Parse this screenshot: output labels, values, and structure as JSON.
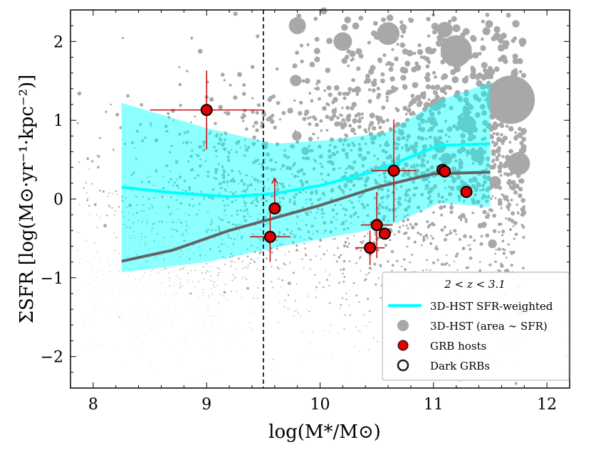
{
  "chart_data": {
    "type": "scatter",
    "xlabel": "log(M*/M⊙)",
    "ylabel": "ΣSFR [log(M⊙·yr⁻¹·kpc⁻²)]",
    "xlim": [
      7.8,
      12.2
    ],
    "ylim": [
      -2.4,
      2.4
    ],
    "xticks": [
      8,
      9,
      10,
      11,
      12
    ],
    "yticks": [
      -2,
      -1,
      0,
      1,
      2
    ],
    "vertical_line_x": 9.5,
    "legend": {
      "placement": "lower-right",
      "title": "2 < z < 3.1",
      "entries": [
        {
          "label": "3D-HST SFR-weighted",
          "marker": "line",
          "color": "#00ffff"
        },
        {
          "label": "3D-HST (area ∼ SFR)",
          "marker": "circle",
          "color": "#a8a8a8"
        },
        {
          "label": "GRB hosts",
          "marker": "circle",
          "color": "#e00000"
        },
        {
          "label": "Dark GRBs",
          "marker": "open-circle",
          "color": "#1a1a2e"
        }
      ]
    },
    "band": {
      "name": "3D-HST SFR-weighted",
      "color": "#00ffff",
      "x": [
        8.25,
        9.0,
        9.6,
        10.1,
        10.6,
        11.05,
        11.5
      ],
      "upper": [
        1.22,
        0.9,
        0.7,
        0.75,
        0.85,
        1.25,
        1.48
      ],
      "lower": [
        -0.93,
        -0.8,
        -0.62,
        -0.48,
        -0.35,
        -0.05,
        -0.1
      ]
    },
    "sfr_weighted_line": {
      "color": "#00ffff",
      "x": [
        8.25,
        8.7,
        9.2,
        9.6,
        10.0,
        10.5,
        11.05,
        11.5
      ],
      "y": [
        0.15,
        0.08,
        0.03,
        0.07,
        0.17,
        0.36,
        0.68,
        0.7
      ]
    },
    "median_line": {
      "color": "#646464",
      "x": [
        8.25,
        8.7,
        9.2,
        9.6,
        10.0,
        10.5,
        11.0,
        11.5
      ],
      "y": [
        -0.79,
        -0.65,
        -0.4,
        -0.24,
        -0.08,
        0.15,
        0.32,
        0.34
      ]
    },
    "grb_hosts": [
      {
        "x": 9.0,
        "y": 1.13,
        "xerr": 0.5,
        "yerr": 0.5
      },
      {
        "x": 9.56,
        "y": -0.48,
        "xerr": 0.18,
        "yerr": 0.32
      },
      {
        "x": 9.6,
        "y": -0.12,
        "upper_limit": true
      },
      {
        "x": 10.44,
        "y": -0.62,
        "xerr": 0.13,
        "yerr": 0.22
      },
      {
        "x": 10.5,
        "y": -0.33,
        "xerr": 0.14,
        "yerr": 0.42
      },
      {
        "x": 10.57,
        "y": -0.44
      },
      {
        "x": 10.65,
        "y": 0.36,
        "xerr": 0.2,
        "yerr": 0.65
      },
      {
        "x": 11.08,
        "y": 0.37
      },
      {
        "x": 11.1,
        "y": 0.35
      },
      {
        "x": 11.29,
        "y": 0.09
      }
    ]
  }
}
